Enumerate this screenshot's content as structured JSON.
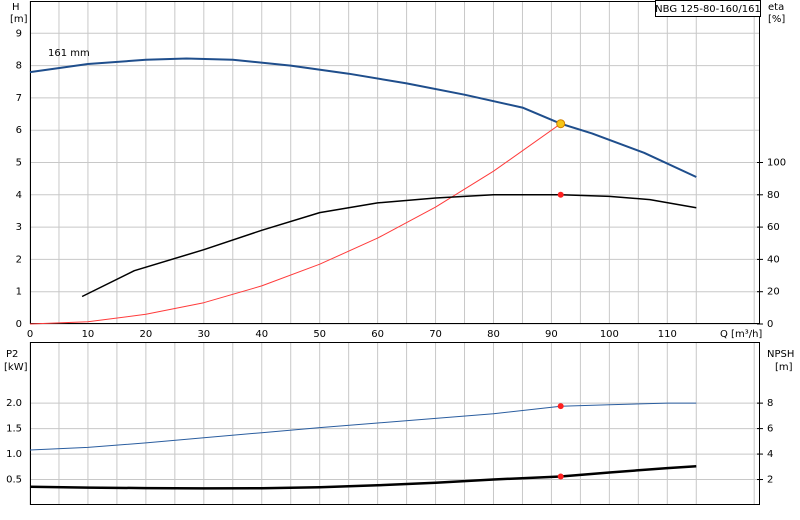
{
  "chart_data": [
    {
      "type": "line",
      "title": "NBG 125-80-160/161",
      "annotation": "161 mm",
      "xlabel": "Q [m³/h]",
      "ylabel": "H",
      "ylabel_unit": "[m]",
      "y2label": "eta",
      "y2label_unit": "[%]",
      "xlim": [
        0,
        126
      ],
      "xticks": [
        0,
        10,
        20,
        30,
        40,
        50,
        60,
        70,
        80,
        90,
        100,
        110
      ],
      "xgrid_minor": [
        5,
        15,
        25,
        35,
        45,
        55,
        65,
        75,
        85,
        95,
        105,
        115,
        125
      ],
      "ylim": [
        0,
        10
      ],
      "yticks": [
        0,
        1,
        2,
        3,
        4,
        5,
        6,
        7,
        8,
        9
      ],
      "y2lim": [
        0,
        200
      ],
      "y2ticks": [
        0,
        20,
        40,
        60,
        80,
        100
      ],
      "grid": true,
      "series": [
        {
          "color": "#1f4e8c",
          "width": 2,
          "axis": "y",
          "x": [
            0,
            10,
            20,
            27,
            35,
            45,
            55,
            65,
            75,
            85,
            91.6,
            97,
            106,
            115
          ],
          "values": [
            7.8,
            8.05,
            8.18,
            8.22,
            8.18,
            8.0,
            7.75,
            7.45,
            7.1,
            6.7,
            6.2,
            5.9,
            5.3,
            4.55
          ]
        },
        {
          "color": "#ff3b3b",
          "width": 1,
          "axis": "y",
          "x": [
            0,
            10,
            20,
            30,
            40,
            50,
            60,
            70,
            80,
            91.6
          ],
          "values": [
            0,
            0.07,
            0.3,
            0.66,
            1.18,
            1.85,
            2.66,
            3.62,
            4.73,
            6.2
          ]
        },
        {
          "color": "#000000",
          "width": 1.5,
          "axis": "y2",
          "x": [
            9,
            18,
            30,
            40,
            50,
            60,
            70,
            80,
            91.6,
            100,
            107,
            115
          ],
          "values": [
            17,
            33,
            46,
            58,
            69,
            75,
            78,
            80,
            80,
            79,
            77,
            72
          ]
        }
      ],
      "points": [
        {
          "x": 91.6,
          "y": 6.2,
          "axis": "y",
          "color": "#f5c518"
        },
        {
          "x": 91.6,
          "y": 80,
          "axis": "y2",
          "color": "#ff2020"
        }
      ]
    },
    {
      "type": "line",
      "ylabel": "P2",
      "ylabel_unit": "[kW]",
      "y2label": "NPSH",
      "y2label_unit": "[m]",
      "xlim": [
        0,
        126
      ],
      "xticks": [
        0,
        10,
        20,
        30,
        40,
        50,
        60,
        70,
        80,
        90,
        100,
        110
      ],
      "xtick_labels": false,
      "xgrid_minor": [
        5,
        15,
        25,
        35,
        45,
        55,
        65,
        75,
        85,
        95,
        105,
        115,
        125
      ],
      "ylim": [
        0,
        3.2
      ],
      "yticks": [
        0.5,
        {
          "value": 1,
          "label": "1.0"
        },
        1.5,
        {
          "value": 2,
          "label": "2.0"
        }
      ],
      "y2lim": [
        0,
        12.8
      ],
      "y2ticks": [
        2,
        4,
        6,
        8
      ],
      "grid": true,
      "series": [
        {
          "color": "#2a5d9f",
          "width": 1,
          "axis": "y",
          "x": [
            0,
            10,
            20,
            30,
            40,
            50,
            60,
            70,
            80,
            91.6,
            100,
            110,
            115
          ],
          "values": [
            1.08,
            1.13,
            1.22,
            1.32,
            1.42,
            1.52,
            1.61,
            1.7,
            1.79,
            1.94,
            1.97,
            2.0,
            2.0
          ]
        },
        {
          "color": "#000000",
          "width": 2.5,
          "axis": "y2",
          "x": [
            0,
            10,
            20,
            30,
            40,
            50,
            60,
            70,
            80,
            91.6,
            100,
            110,
            115
          ],
          "values": [
            1.44,
            1.37,
            1.33,
            1.3,
            1.32,
            1.4,
            1.55,
            1.75,
            2.0,
            2.24,
            2.55,
            2.9,
            3.04
          ]
        }
      ],
      "points": [
        {
          "x": 91.6,
          "y": 1.94,
          "axis": "y",
          "color": "#ff2020"
        },
        {
          "x": 91.6,
          "y": 2.24,
          "axis": "y2",
          "color": "#ff2020"
        }
      ]
    }
  ]
}
